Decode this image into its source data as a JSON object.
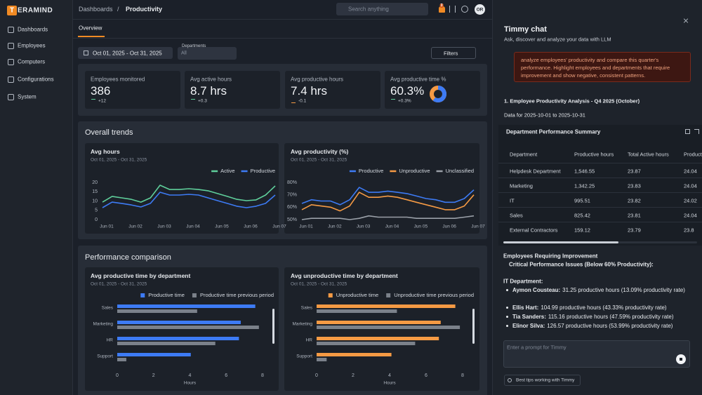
{
  "sidebar": {
    "logo_letter": "T",
    "logo_text": "ERAMIND",
    "nav": [
      "Dashboards",
      "Employees",
      "Computers",
      "Configurations",
      "System"
    ]
  },
  "header": {
    "breadcrumb": [
      "Dashboards",
      "/",
      "Productivity"
    ],
    "search": "Search anything",
    "badge": "3",
    "avatar": "OR"
  },
  "tabs": [
    "Overview"
  ],
  "filters": {
    "date": "Oct 01, 2025 - Oct 31, 2025",
    "departments_label": "Departments",
    "departments_value": "All",
    "filters_button": "Filters"
  },
  "kpis": [
    {
      "title": "Employees monitored",
      "value": "386",
      "delta": "+12",
      "trend": "up"
    },
    {
      "title": "Avg active hours",
      "value": "8.7 hrs",
      "delta": "+0.3",
      "trend": "up"
    },
    {
      "title": "Avg productive hours",
      "value": "7.4 hrs",
      "delta": "-0.1",
      "trend": "down"
    },
    {
      "title": "Avg productive time %",
      "value": "60.3%",
      "delta": "+0.3%",
      "trend": "up",
      "donut": 60.3
    }
  ],
  "sections": [
    {
      "title": "Overall trends"
    },
    {
      "title": "Performance comparison"
    }
  ],
  "chart_data": [
    {
      "type": "line",
      "title": "Avg hours",
      "subtitle": "Oct 01, 2025 - Oct 31, 2025",
      "categories": [
        "Jun 01",
        null,
        null,
        "Jun 02",
        null,
        null,
        "Jun 03",
        null,
        null,
        "Jun 04",
        null,
        null,
        "Jun 05",
        null,
        null,
        "Jun 06",
        null,
        null,
        "Jun 07"
      ],
      "series": [
        {
          "name": "Active",
          "color": "#5fcf9b",
          "values": [
            9.4,
            12.5,
            11.7,
            10.9,
            9.4,
            11.7,
            18.5,
            16.2,
            16.2,
            16.6,
            16.2,
            15.5,
            14,
            12.5,
            10.9,
            10.2,
            10.6,
            13.2,
            18.1
          ]
        },
        {
          "name": "Productive",
          "color": "#3d7bf5",
          "values": [
            6.4,
            9.4,
            8.7,
            7.9,
            6.8,
            8.7,
            14.7,
            13.2,
            13.2,
            13.6,
            13.2,
            11.7,
            10.2,
            8.7,
            7.2,
            6.4,
            7.2,
            8.7,
            13.2
          ]
        }
      ],
      "ylim": [
        0,
        20
      ],
      "yticks": [
        0,
        5,
        10,
        15,
        20
      ],
      "grid": false
    },
    {
      "type": "line",
      "title": "Avg productivity (%)",
      "subtitle": "Oct 01, 2025 - Oct 31, 2025",
      "categories": [
        "Jun 01",
        null,
        null,
        "Jun 02",
        null,
        null,
        "Jun 03",
        null,
        null,
        "Jun 04",
        null,
        null,
        "Jun 05",
        null,
        null,
        "Jun 06",
        null,
        null,
        "Jun 07"
      ],
      "series": [
        {
          "name": "Productive",
          "color": "#3d7bf5",
          "values": [
            63,
            66,
            65,
            65,
            62,
            66,
            76,
            72,
            72,
            73,
            72,
            71,
            69,
            67,
            66,
            64,
            64,
            67,
            74
          ]
        },
        {
          "name": "Unproductive",
          "color": "#f59a44",
          "values": [
            58,
            62,
            61,
            60,
            57,
            61,
            72,
            68,
            68,
            69,
            68,
            66,
            64,
            62,
            60,
            58,
            58,
            61,
            70
          ]
        },
        {
          "name": "Unclassified",
          "color": "#9aa0a8",
          "values": [
            50,
            51,
            51,
            51,
            51,
            50,
            51,
            53,
            52,
            52,
            52,
            52,
            51,
            51,
            51,
            51,
            51,
            52,
            53
          ]
        }
      ],
      "ylim": [
        50,
        80
      ],
      "yticks": [
        {
          "value": 50,
          "label": "50%"
        },
        {
          "value": 60,
          "label": "60%"
        },
        {
          "value": 70,
          "label": "70%"
        },
        {
          "value": 80,
          "label": "80%"
        }
      ],
      "grid": false
    },
    {
      "type": "hbar",
      "title": "Avg productive time by department",
      "subtitle": "Oct 01, 2025 - Oct 31, 2025",
      "categories": [
        "Sales",
        "Marketing",
        "HR",
        "Support"
      ],
      "series": [
        {
          "name": "Productive time",
          "color": "#3d7bf5",
          "values": [
            7.6,
            6.8,
            6.7,
            4.05
          ]
        },
        {
          "name": "Productive time previous period",
          "color": "#7b818a",
          "values": [
            4.4,
            7.8,
            5.4,
            0.5
          ]
        }
      ],
      "xlim": [
        0,
        8
      ],
      "xticks": [
        0,
        2,
        4,
        6,
        8
      ],
      "xlabel": "Hours",
      "grid": false
    },
    {
      "type": "hbar",
      "title": "Avg unproductive time by department",
      "subtitle": "Oct 01, 2025 - Oct 31, 2025",
      "categories": [
        "Sales",
        "Marketing",
        "HR",
        "Support"
      ],
      "series": [
        {
          "name": "Unproductive time",
          "color": "#f59a44",
          "values": [
            7.6,
            6.8,
            6.7,
            4.1
          ]
        },
        {
          "name": "Unproductive time previous period",
          "color": "#7b818a",
          "values": [
            4.4,
            7.85,
            5.4,
            0.55
          ]
        }
      ],
      "xlim": [
        0,
        8
      ],
      "xticks": [
        0,
        2,
        4,
        6,
        8
      ],
      "xlabel": "Hours",
      "grid": false
    }
  ],
  "chat": {
    "title": "Timmy chat",
    "subtitle": "Ask, discover and analyze your data with LLM",
    "user_message": "analyze employees' productivity and compare this quarter's performance. Highlight employees and departments that require improvement and show negative, consistent patterns.",
    "heading": "1. Employee Productivity Analysis - Q4 2025 (October)",
    "date_range": "Data for 2025-10-01 to 2025-10-31",
    "table": {
      "title": "Department Performance Summary",
      "columns": [
        "Department",
        "Productive hours",
        "Total Active hours",
        "Product"
      ],
      "rows": [
        [
          "Helpdesk Department",
          "1,546.55",
          "23.87",
          "24.04"
        ],
        [
          "Marketing",
          "1,342.25",
          "23.83",
          "24.04"
        ],
        [
          "IT",
          "995.51",
          "23.82",
          "24.02"
        ],
        [
          "Sales",
          "825.42",
          "23.81",
          "24.04"
        ],
        [
          "External Contractors",
          "159.12",
          "23.79",
          "23.8"
        ]
      ]
    },
    "improvement_title": "Employees Requiring Improvement",
    "critical_title": "Critical Performance Issues (Below 60% Productivity):",
    "department": "IT Department:",
    "employees": [
      {
        "name": "Aymon Cousteau:",
        "detail": "31.25 productive hours (13.09% productivity rate)"
      },
      {
        "name": "Ellis Hart:",
        "detail": "104.99 productive hours (43.33% productivity rate)"
      },
      {
        "name": "Tia Sanders:",
        "detail": "115.16 productive hours (47.59% productivity rate)"
      },
      {
        "name": "Elinor Silva:",
        "detail": "126.57 productive hours (53.99% productivity rate)"
      }
    ],
    "prompt_placeholder": "Enter a prompt for Timmy",
    "tips": "Best tips working with Timmy"
  }
}
